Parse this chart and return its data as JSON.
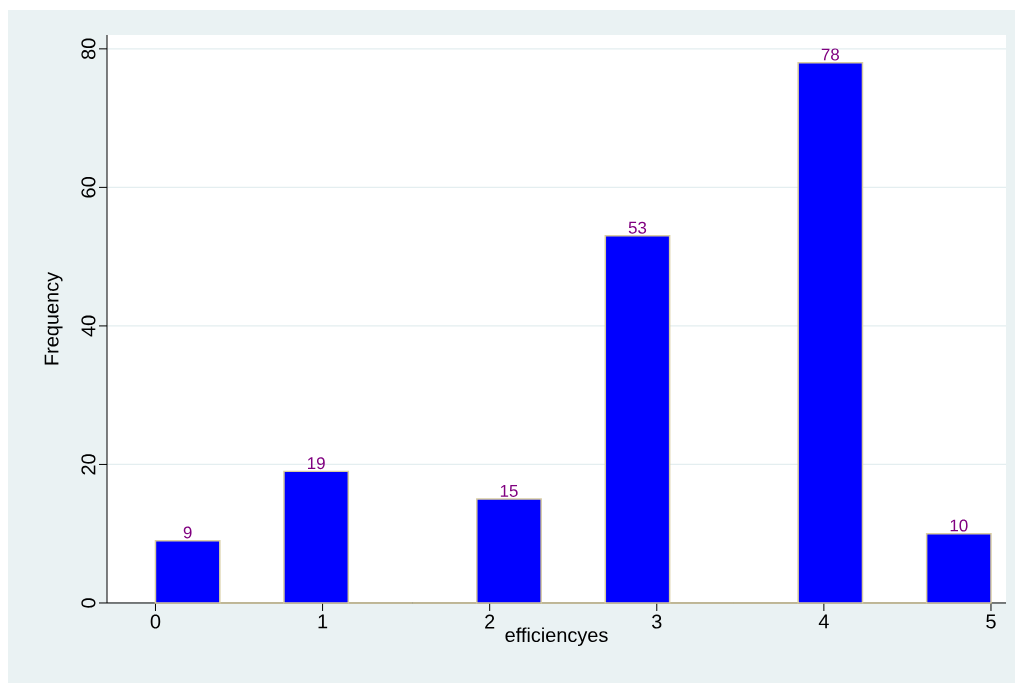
{
  "chart_data": {
    "type": "histogram",
    "xlabel": "efficiencyes",
    "ylabel": "Frequency",
    "bins": [
      0,
      0.385,
      0.769,
      1.154,
      1.538,
      1.923,
      2.308,
      2.692,
      3.077,
      3.462,
      3.846,
      4.231,
      4.615,
      5
    ],
    "values": [
      9,
      0,
      19,
      0,
      0,
      15,
      0,
      53,
      0,
      0,
      78,
      0,
      10
    ],
    "value_labels": [
      "9",
      null,
      "19",
      null,
      null,
      "15",
      null,
      "53",
      null,
      null,
      "78",
      null,
      "10"
    ],
    "color": "#0000ff",
    "xlim": [
      -0.29,
      5.09
    ],
    "ylim": [
      0,
      82
    ],
    "xticks": [
      0,
      1,
      2,
      3,
      4,
      5
    ],
    "yticks": [
      0,
      20,
      40,
      60,
      80
    ],
    "grid": "y"
  }
}
